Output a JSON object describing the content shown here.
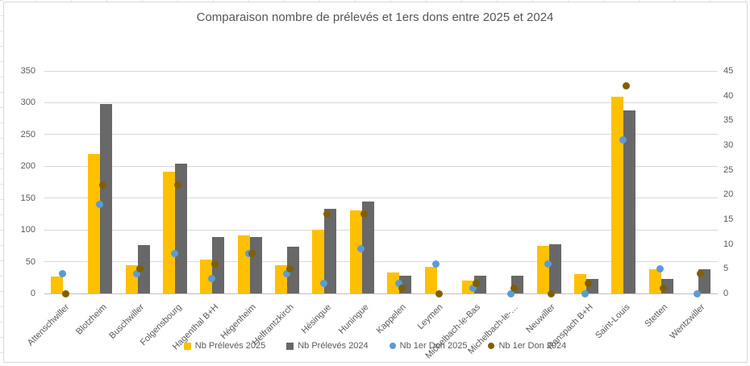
{
  "title": "Comparaison nombre de prélevés et 1ers dons entre 2025 et 2024",
  "colors": {
    "bar_2025": "#FFC000",
    "bar_2024": "#686868",
    "dot_2025": "#5B9BD5",
    "dot_2024": "#7F6000",
    "grid": "#d9d9d9",
    "axis_text": "#595959"
  },
  "chart_data": {
    "type": "bar",
    "subtype": "combo-bar-and-points",
    "title": "Comparaison nombre de prélevés et 1ers dons entre 2025 et 2024",
    "grid": true,
    "legend_position": "bottom",
    "categories": [
      "Attenschwiller",
      "Blotzheim",
      "Buschwiller",
      "Folgensbourg",
      "Hagenthal B+H",
      "Hégenheim",
      "Helfrantzkirch",
      "Hésingue",
      "Huningue",
      "Kappelen",
      "Leymen",
      "Michelbach-le-Bas",
      "Michelbach-le-…",
      "Neuwiller",
      "Ranspach B+H",
      "Saint-Louis",
      "Stetten",
      "Wentzwiller"
    ],
    "left_axis": {
      "min": 0,
      "max": 350,
      "step": 50,
      "tick_labels": [
        "0",
        "50",
        "100",
        "150",
        "200",
        "250",
        "300",
        "350"
      ]
    },
    "right_axis": {
      "min": 0,
      "max": 45,
      "step": 5,
      "tick_labels": [
        "0",
        "5",
        "10",
        "15",
        "20",
        "25",
        "30",
        "35",
        "40",
        "45"
      ]
    },
    "series": [
      {
        "key": "nb-preleves-2025",
        "name": "Nb Prélevés 2025",
        "render": "bar",
        "axis": "left",
        "color": "#FFC000",
        "values": [
          27,
          220,
          45,
          191,
          53,
          91,
          45,
          100,
          130,
          33,
          42,
          20,
          0,
          75,
          31,
          310,
          38,
          0
        ]
      },
      {
        "key": "nb-preleves-2024",
        "name": "Nb Prélevés 2024",
        "render": "bar",
        "axis": "left",
        "color": "#686868",
        "values": [
          0,
          298,
          76,
          204,
          89,
          89,
          74,
          133,
          144,
          28,
          0,
          28,
          28,
          77,
          23,
          288,
          23,
          38
        ]
      },
      {
        "key": "nb-1er-don-2025",
        "name": "Nb 1er Don 2025",
        "render": "point",
        "axis": "right",
        "color": "#5B9BD5",
        "values": [
          4,
          18,
          4,
          8,
          3,
          8,
          4,
          2,
          9,
          2,
          6,
          1,
          0,
          6,
          0,
          31,
          5,
          0
        ]
      },
      {
        "key": "nb-1er-don-2024",
        "name": "Nb 1er Don 2024",
        "render": "point",
        "axis": "right",
        "color": "#7F6000",
        "values": [
          0,
          22,
          5,
          22,
          6,
          8,
          5,
          16,
          16,
          1,
          0,
          2,
          1,
          0,
          2,
          42,
          1,
          4
        ]
      }
    ]
  }
}
